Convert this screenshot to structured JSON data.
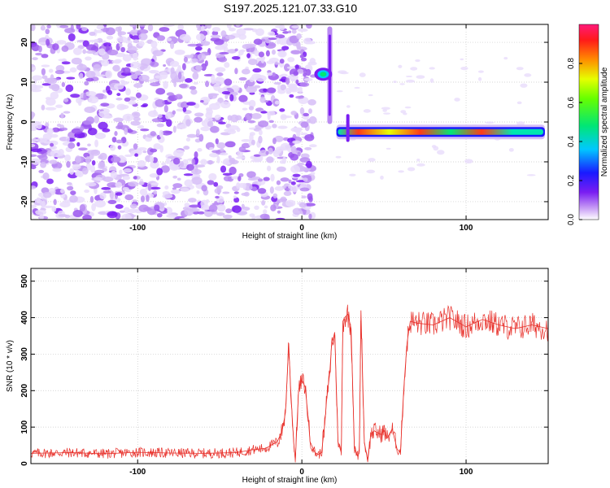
{
  "chart_data": [
    {
      "type": "heatmap",
      "title": "S197.2025.121.07.33.G10",
      "xlabel": "Height of straight line (km)",
      "ylabel": "Frequency (Hz)",
      "xlim": [
        -165,
        150
      ],
      "ylim": [
        -24.5,
        24.5
      ],
      "x_ticks": [
        -100,
        0,
        100
      ],
      "x_tick_labels": [
        "-100",
        "0",
        "100"
      ],
      "y_ticks": [
        -20,
        -10,
        0,
        10,
        20
      ],
      "y_tick_labels": [
        "-20",
        "-10",
        "0",
        "10",
        "20"
      ],
      "noise_region_x": [
        -165,
        7
      ],
      "features": [
        {
          "kind": "vertical-streak",
          "x": 17,
          "y_from": -0.5,
          "y_to": 24
        },
        {
          "kind": "blob",
          "x": 13,
          "y": 12
        },
        {
          "kind": "band",
          "x_from": 21,
          "x_to": 148,
          "y": -2.5,
          "peak": 0.85
        },
        {
          "kind": "spike",
          "x": 28,
          "y_from": -5,
          "y_to": 2
        }
      ],
      "colorbar": {
        "label": "Normalized spectral amplitude",
        "range": [
          0.0,
          1.0
        ],
        "ticks": [
          "0.0",
          "0.2",
          "0.4",
          "0.6",
          "0.8"
        ],
        "tick_values": [
          0.0,
          0.2,
          0.4,
          0.6,
          0.8
        ]
      },
      "grid": true
    },
    {
      "type": "line",
      "xlabel": "Height of straight line (km)",
      "ylabel": "SNR (10 * v/v)",
      "xlim": [
        -165,
        150
      ],
      "ylim": [
        0,
        535
      ],
      "x_ticks": [
        -100,
        0,
        100
      ],
      "x_tick_labels": [
        "-100",
        "0",
        "100"
      ],
      "y_ticks": [
        0,
        100,
        200,
        300,
        400,
        500
      ],
      "y_tick_labels": [
        "0",
        "100",
        "200",
        "300",
        "400",
        "500"
      ],
      "series": [
        {
          "color": "#e8302a",
          "x": [
            -165,
            -140,
            -120,
            -100,
            -80,
            -60,
            -40,
            -30,
            -22,
            -15,
            -12,
            -10,
            -8,
            -7,
            -5,
            -4,
            -2,
            0,
            2,
            4,
            5,
            7,
            8,
            10,
            12,
            14,
            15,
            17,
            18,
            20,
            22,
            24,
            25,
            26,
            28,
            30,
            32,
            34,
            35,
            36,
            38,
            40,
            42,
            44,
            46,
            48,
            50,
            52,
            55,
            58,
            60,
            62,
            64,
            66,
            70,
            80,
            90,
            100,
            110,
            120,
            130,
            140,
            150
          ],
          "values": [
            28,
            30,
            27,
            31,
            29,
            28,
            30,
            38,
            42,
            60,
            90,
            140,
            330,
            220,
            60,
            10,
            200,
            230,
            210,
            120,
            60,
            40,
            30,
            25,
            30,
            110,
            170,
            250,
            320,
            360,
            60,
            30,
            390,
            400,
            410,
            370,
            40,
            20,
            30,
            420,
            60,
            10,
            80,
            90,
            85,
            80,
            90,
            70,
            95,
            40,
            30,
            200,
            330,
            390,
            385,
            380,
            400,
            375,
            395,
            380,
            370,
            380,
            370
          ]
        }
      ],
      "grid": true
    }
  ]
}
